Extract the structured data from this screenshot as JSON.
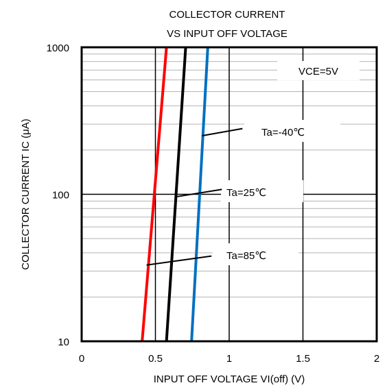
{
  "chart_data": {
    "type": "line",
    "title": [
      "COLLECTOR CURRENT",
      "VS INPUT OFF VOLTAGE"
    ],
    "xlabel": "INPUT OFF VOLTAGE VI(off) (V)",
    "ylabel": "COLLECTOR CURRENT IC (μA)",
    "xlim": [
      0,
      2
    ],
    "ylim": [
      10,
      1000
    ],
    "y_scale": "log",
    "x_ticks": [
      0,
      0.5,
      1,
      1.5,
      2
    ],
    "x_tick_labels": [
      "0",
      "0.5",
      "1",
      "1.5",
      "2"
    ],
    "y_ticks": [
      10,
      100,
      1000
    ],
    "y_tick_labels": [
      "10",
      "100",
      "1000"
    ],
    "grid": true,
    "conditions_label": "VCE=5V",
    "series": [
      {
        "name": "Ta=85℃",
        "color": "#ff0000",
        "x": [
          0.41,
          0.575
        ],
        "y": [
          10,
          1000
        ]
      },
      {
        "name": "Ta=25℃",
        "color": "#000000",
        "x": [
          0.575,
          0.705
        ],
        "y": [
          10,
          1000
        ]
      },
      {
        "name": "Ta=-40℃",
        "color": "#0070c0",
        "x": [
          0.745,
          0.855
        ],
        "y": [
          10,
          1000
        ]
      }
    ],
    "annotations": [
      {
        "text": "Ta=-40℃",
        "from": [
          1.09,
          280
        ],
        "to": [
          0.815,
          250
        ]
      },
      {
        "text": "Ta=25℃",
        "from": [
          0.95,
          108
        ],
        "to": [
          0.635,
          96
        ]
      },
      {
        "text": "Ta=85℃",
        "from": [
          0.88,
          38
        ],
        "to": [
          0.44,
          33
        ]
      }
    ]
  }
}
